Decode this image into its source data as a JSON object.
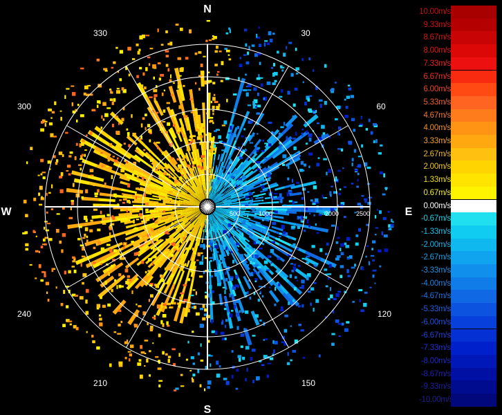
{
  "compass": {
    "north": "N",
    "south": "S",
    "east": "E",
    "west": "W"
  },
  "azimuth_labels": [
    "30",
    "60",
    "120",
    "150",
    "210",
    "240",
    "300",
    "330"
  ],
  "range_labels": [
    "500",
    "1000",
    "2000",
    "2500"
  ],
  "legend": [
    {
      "label": "10.00m/s",
      "color": "#a80000",
      "text": "#c81010"
    },
    {
      "label": "9.33m/s",
      "color": "#b40000",
      "text": "#d01010"
    },
    {
      "label": "8.67m/s",
      "color": "#c80404",
      "text": "#d81414"
    },
    {
      "label": "8.00m/s",
      "color": "#dc0808",
      "text": "#e01818"
    },
    {
      "label": "7.33m/s",
      "color": "#ec1010",
      "text": "#ec2020"
    },
    {
      "label": "6.67m/s",
      "color": "#f82a10",
      "text": "#f03020"
    },
    {
      "label": "6.00m/s",
      "color": "#ff4a14",
      "text": "#f04828"
    },
    {
      "label": "5.33m/s",
      "color": "#ff6420",
      "text": "#f06030"
    },
    {
      "label": "4.67m/s",
      "color": "#ff7c1c",
      "text": "#f07830"
    },
    {
      "label": "4.00m/s",
      "color": "#ff9414",
      "text": "#f09030"
    },
    {
      "label": "3.33m/s",
      "color": "#ffa810",
      "text": "#f0a030"
    },
    {
      "label": "2.67m/s",
      "color": "#ffc010",
      "text": "#f0b830"
    },
    {
      "label": "2.00m/s",
      "color": "#ffd400",
      "text": "#f0cc20"
    },
    {
      "label": "1.33m/s",
      "color": "#ffe400",
      "text": "#f0dc20"
    },
    {
      "label": "0.67m/s",
      "color": "#fff400",
      "text": "#f0ec30"
    },
    {
      "label": "0.00m/s",
      "color": "#ffffff",
      "text": "#ffffff"
    },
    {
      "label": "-0.67m/s",
      "color": "#20e0f0",
      "text": "#20d0e8"
    },
    {
      "label": "-1.33m/s",
      "color": "#10ccf0",
      "text": "#20c0e8"
    },
    {
      "label": "-2.00m/s",
      "color": "#10b8f0",
      "text": "#20b0e8"
    },
    {
      "label": "-2.67m/s",
      "color": "#10a4ee",
      "text": "#20a0e8"
    },
    {
      "label": "-3.33m/s",
      "color": "#1090ec",
      "text": "#2090e0"
    },
    {
      "label": "-4.00m/s",
      "color": "#107ce8",
      "text": "#2080e0"
    },
    {
      "label": "-4.67m/s",
      "color": "#1068e4",
      "text": "#2070e0"
    },
    {
      "label": "-5.33m/s",
      "color": "#0c54e0",
      "text": "#2060e0"
    },
    {
      "label": "-6.00m/s",
      "color": "#0840dc",
      "text": "#2050e0"
    },
    {
      "label": "-6.67m/s",
      "color": "#0430d4",
      "text": "#2040d8"
    },
    {
      "label": "-7.33m/s",
      "color": "#0020cc",
      "text": "#2030d0"
    },
    {
      "label": "-8.00m/s",
      "color": "#0018b8",
      "text": "#2028c0"
    },
    {
      "label": "-8.67m/s",
      "color": "#0010a4",
      "text": "#2020b0"
    },
    {
      "label": "-9.33m/s",
      "color": "#000c90",
      "text": "#2020a0"
    },
    {
      "label": "-10.00m/s",
      "color": "#00087c",
      "text": "#202090"
    }
  ]
}
